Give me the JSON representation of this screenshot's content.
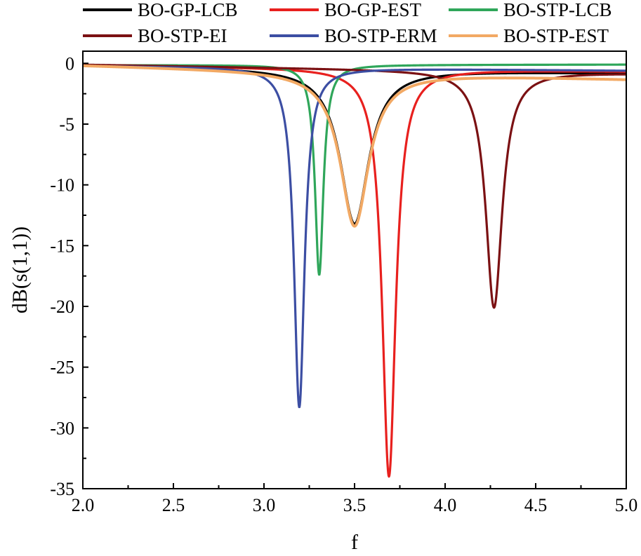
{
  "chart_data": {
    "type": "line",
    "title": "",
    "xlabel": "f",
    "ylabel": "dB(s(1,1))",
    "xlim": [
      2.0,
      5.0
    ],
    "ylim": [
      -35,
      1
    ],
    "xticks": [
      "2.0",
      "2.5",
      "3.0",
      "3.5",
      "4.0",
      "4.5",
      "5.0"
    ],
    "yticks": [
      "0",
      "-5",
      "-10",
      "-15",
      "-20",
      "-25",
      "-30",
      "-35"
    ],
    "grid": false,
    "legend_position": "top",
    "series": [
      {
        "name": "BO-GP-LCB",
        "color": "#000000",
        "f0": 3.5,
        "depth": -13.2,
        "gamma": 0.095,
        "base_left": -0.15,
        "base_right": -0.8
      },
      {
        "name": "BO-GP-EST",
        "color": "#e8201e",
        "f0": 3.69,
        "depth": -34.0,
        "gamma": 0.045,
        "base_left": -0.15,
        "base_right": -0.65
      },
      {
        "name": "BO-STP-LCB",
        "color": "#2fa65a",
        "f0": 3.305,
        "depth": -17.4,
        "gamma": 0.028,
        "base_left": -0.15,
        "base_right": -0.1
      },
      {
        "name": "BO-STP-EI",
        "color": "#7b1113",
        "f0": 4.27,
        "depth": -20.1,
        "gamma": 0.055,
        "base_left": -0.1,
        "base_right": -0.8
      },
      {
        "name": "BO-STP-ERM",
        "color": "#3c4ea3",
        "f0": 3.195,
        "depth": -28.3,
        "gamma": 0.035,
        "base_left": -0.2,
        "base_right": -0.6
      },
      {
        "name": "BO-STP-EST",
        "color": "#f2a964",
        "f0": 3.5,
        "depth": -13.4,
        "gamma": 0.095,
        "base_left": -0.15,
        "base_right": -1.3
      }
    ]
  }
}
